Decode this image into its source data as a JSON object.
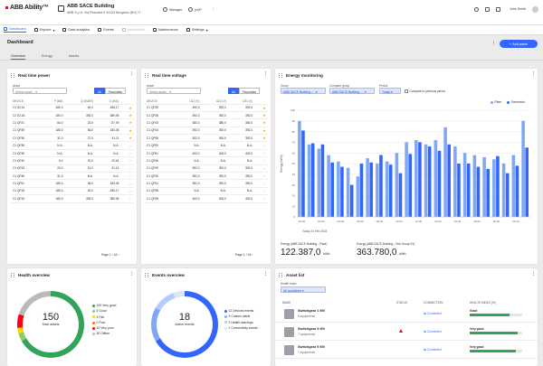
{
  "app": {
    "name": "ABB Ability™",
    "building": "ABB SACE Building",
    "address": "ABB S.p.A. Via Pescaria 5 24123 Bergamo (BG) IT",
    "manager": "Manager",
    "unit": "(m)P",
    "user": "John Smith"
  },
  "nav": [
    {
      "label": "Dashboard",
      "state": "active"
    },
    {
      "label": "Explore",
      "state": "normal"
    },
    {
      "label": "Data analytics",
      "state": "normal"
    },
    {
      "label": "Events",
      "state": "normal"
    },
    {
      "label": "Automation",
      "state": "disabled"
    },
    {
      "label": "Maintenance",
      "state": "normal"
    },
    {
      "label": "Settings",
      "state": "normal"
    }
  ],
  "page": {
    "title": "Dashboard",
    "add_panel": "Add panel"
  },
  "tabs": [
    "Overview",
    "Energy",
    "Assets"
  ],
  "rtp": {
    "title": "Real time power",
    "asset_label": "Asset",
    "asset_placeholder": "Select asset...",
    "seg": [
      "All",
      "Favourites"
    ],
    "cols": [
      "DEVICE",
      "P (kW)",
      "Q (kVAR)",
      "S (kVA)",
      ""
    ],
    "rows": [
      [
        "C1 S2.41",
        "180,0",
        "40,0",
        "-185,17",
        "on"
      ],
      [
        "C1 S2.43",
        "180,0",
        "392,0",
        "389,05",
        "on"
      ],
      [
        "C1 QF21",
        "84,0",
        "23,0",
        "87,09",
        "on"
      ],
      [
        "C1 QF35",
        "180,0",
        "36,0",
        "183,45",
        "on"
      ],
      [
        "C1 QF36",
        "31,0",
        "27,0",
        "41,11",
        "on"
      ],
      [
        "C1 QF38",
        "N.A.",
        "N.A.",
        "N.A.",
        "off"
      ],
      [
        "C1 QF39",
        "N.A.",
        "N.A.",
        "N.A.",
        "off"
      ],
      [
        "C1 QF40",
        "5,0",
        "20,0",
        "20,61",
        "off"
      ],
      [
        "C1 QF43",
        "23,0",
        "21,0",
        "31,14",
        "off"
      ],
      [
        "C1 QF46",
        "31,0",
        "N.A.",
        "N.A.",
        "off"
      ],
      [
        "C1 QF51",
        "180,0",
        "36,0",
        "183,45",
        "off"
      ],
      [
        "C1 QF18",
        "180,0",
        "40,0",
        "-185,17",
        "off"
      ],
      [
        "C1 QF19",
        "180,0",
        "392,0",
        "389,05",
        "off"
      ]
    ],
    "pager": "Page  1 / 16"
  },
  "rtv": {
    "title": "Real time voltage",
    "asset_label": "Asset",
    "asset_placeholder": "Select asset...",
    "seg": [
      "All",
      "Favourites"
    ],
    "cols": [
      "DEVICE",
      "U12 (V)",
      "U23 (V)",
      "U31 (V)",
      ""
    ],
    "rows": [
      [
        "C1 QF35",
        "392,0",
        "392,0",
        "392,0",
        "on"
      ],
      [
        "C1 QF36",
        "392,0",
        "392,0",
        "392,0",
        "on"
      ],
      [
        "C1 QF43",
        "380,0",
        "380,0",
        "380,0",
        "on"
      ],
      [
        "C1 QF44",
        "392,0",
        "392,0",
        "392,0",
        "on"
      ],
      [
        "C1 QF45",
        "392,0",
        "392,0",
        "392,0",
        "on"
      ],
      [
        "C1 QF50",
        "N.A.",
        "N.A.",
        "N.A.",
        "off"
      ],
      [
        "C1 QF51",
        "400,0",
        "400,0",
        "400,0",
        "off"
      ],
      [
        "C1 QF46",
        "N.A.",
        "N.A.",
        "N.A.",
        "off"
      ],
      [
        "C1 QF49",
        "392,0",
        "392,0",
        "392,0",
        "off"
      ],
      [
        "C1 QF40",
        "392,0",
        "392,0",
        "392,0",
        "off"
      ],
      [
        "C1 QF31",
        "392,0",
        "392,0",
        "392,0",
        "off"
      ],
      [
        "C1 QF38",
        "N.A.",
        "N.A.",
        "N.A.",
        "off"
      ],
      [
        "C1 QF39",
        "400,0",
        "400,0",
        "400,0",
        "off"
      ]
    ],
    "pager": "Page  1 / 16"
  },
  "em": {
    "title": "Energy monitoring",
    "group_label": "Group",
    "group_val": "ABB SACE Building -...",
    "cgroup_label": "Compare group",
    "cgroup_val": "ABB SACE Building -...",
    "period_label": "Period",
    "period_val": "Today",
    "compare": "Compare to previous period",
    "ylabel": "Energy (kWh)",
    "xcap": "Today 24 Feb 2023",
    "tot1_label": "Energy (ABB SACE Building - Plant)",
    "tot1_val": "122.387,0",
    "tot1_unit": "kWh",
    "tot2_label": "Energy (ABB SACE Building - Test Group 01)",
    "tot2_val": "363.780,0",
    "tot2_unit": "kWh"
  },
  "chart_data": {
    "type": "bar",
    "ylim": [
      0,
      100
    ],
    "yticks": [
      0,
      10,
      20,
      30,
      40,
      50,
      60,
      70,
      80,
      90,
      100
    ],
    "ylabel": "Energy (kWh)",
    "legend": "top-right",
    "categories": [
      "00:00",
      "01:00",
      "02:00",
      "03:00",
      "04:00",
      "05:00",
      "06:00",
      "07:00",
      "08:00",
      "09:00",
      "10:00",
      "11:00",
      "12:00",
      "13:00",
      "14:00",
      "15:00",
      "16:00",
      "17:00",
      "18:00",
      "19:00",
      "20:00",
      "21:00",
      "22:00",
      "23:00"
    ],
    "series": [
      {
        "name": "Plant",
        "color": "#80a8f5",
        "values": [
          90,
          68,
          64,
          58,
          52,
          46,
          38,
          55,
          50,
          52,
          60,
          70,
          72,
          68,
          72,
          84,
          66,
          60,
          58,
          56,
          54,
          50,
          58,
          90
        ]
      },
      {
        "name": "Generator",
        "color": "#3366ff",
        "values": [
          81,
          69,
          68,
          51,
          47,
          30,
          50,
          51,
          58,
          49,
          41,
          59,
          70,
          66,
          62,
          68,
          50,
          50,
          47,
          45,
          57,
          41,
          48,
          65
        ]
      }
    ]
  },
  "ho": {
    "title": "Health overview",
    "total": "150",
    "total_label": "Total assets",
    "segments": [
      {
        "label": "100 Very good",
        "value": 100,
        "color": "#33a357"
      },
      {
        "label": "6 Good",
        "value": 6,
        "color": "#8fcc6a"
      },
      {
        "label": "4 Fair",
        "value": 4,
        "color": "#ffd800"
      },
      {
        "label": "0 Poor",
        "value": 0,
        "color": "#ff7300"
      },
      {
        "label": "10 Very poor",
        "value": 10,
        "color": "#ff000f"
      },
      {
        "label": "30 Offline",
        "value": 30,
        "color": "#bababa"
      }
    ]
  },
  "eo": {
    "title": "Events overview",
    "total": "18",
    "total_label": "Active events",
    "segments": [
      {
        "label": "12 Devices events",
        "value": 12,
        "color": "#3366ff"
      },
      {
        "label": "3 Custom alerts",
        "value": 3,
        "color": "#80a8f5"
      },
      {
        "label": "2 Health warnings",
        "value": 2,
        "color": "#b3ccff"
      },
      {
        "label": "1 Connectivity events",
        "value": 1,
        "color": "#dde6ff"
      }
    ]
  },
  "af": {
    "title": "Asset list",
    "filter_label": "Health index",
    "filter_val": "All conditions",
    "cols": [
      "NAME",
      "STATUS",
      "CONNECTION",
      "HEALTH INDEX (%)"
    ],
    "rows": [
      {
        "name": "Switchgear 1 MV",
        "eq": "5 equipments",
        "conn": "Connected",
        "hlabel": "Good",
        "pct": 75,
        "warn": false
      },
      {
        "name": "Switchgear 3 MV",
        "eq": "7 equipments",
        "conn": "Connected",
        "hlabel": "Very good",
        "pct": 92,
        "warn": true
      },
      {
        "name": "Switchgear 5 MV",
        "eq": "7 equipments",
        "conn": "Connected",
        "hlabel": "Very good",
        "pct": 88,
        "warn": false
      }
    ]
  }
}
